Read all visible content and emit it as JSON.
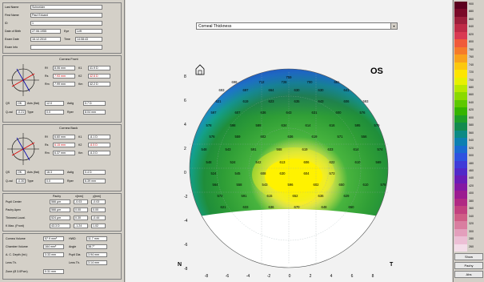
{
  "patient": {
    "rows": [
      {
        "label": "Last Name",
        "value": "Schneider"
      },
      {
        "label": "First Name",
        "value": "Paul Eduard"
      },
      {
        "label": "ID",
        "value": "1"
      },
      {
        "label": "Date of Birth",
        "value": "27.06.1955"
      },
      {
        "label": "Exam Date",
        "value": "16.12.2010"
      },
      {
        "label": "Exam Info",
        "value": ""
      }
    ],
    "eye_label": "Eye",
    "eye_value": "Left",
    "time_label": "Time",
    "time_value": "14:08:43"
  },
  "cornea_front": {
    "title": "Cornea Front",
    "fields": [
      {
        "label": "Rf",
        "value": "8.06 mm",
        "label2": "K1",
        "value2": "41.9 D",
        "red": false
      },
      {
        "label": "Rs",
        "value": "7.93 mm",
        "label2": "K2",
        "value2": "42.6 D",
        "red": true
      },
      {
        "label": "Rm",
        "value": "7.99 mm",
        "label2": "Km",
        "value2": "42.2 D",
        "red": false
      }
    ],
    "astig": [
      {
        "label": "QS",
        "value": "OK",
        "label2": "Axis (flat)",
        "value2": "12.0",
        "label3": "Astig",
        "value3": "0.7 D"
      },
      {
        "label": "Q-val",
        "value": "-0.21",
        "label2": "Type",
        "value2": "0.0",
        "label3": "Rper",
        "value3": "8.04 mm"
      }
    ]
  },
  "cornea_back": {
    "title": "Cornea Back",
    "fields": [
      {
        "label": "Rf",
        "value": "6.60 mm",
        "label2": "K1",
        "value2": "-6.1 D",
        "red": false
      },
      {
        "label": "Rs",
        "value": "6.15 mm",
        "label2": "K2",
        "value2": "-6.5 D",
        "red": true
      },
      {
        "label": "Rm",
        "value": "6.37 mm",
        "label2": "Km",
        "value2": "-6.3 D",
        "red": false
      }
    ],
    "astig": [
      {
        "label": "QS",
        "value": "OK",
        "label2": "Axis (flat)",
        "value2": "16.3",
        "label3": "Astig",
        "value3": "0.4 D"
      },
      {
        "label": "Q-val",
        "value": "-0.30",
        "label2": "Type",
        "value2": "0.0",
        "label3": "Rper",
        "value3": "6.39 mm"
      }
    ]
  },
  "pupil": {
    "header_pachy": "Pachy",
    "header_x": "x[mm]",
    "header_y": "y[mm]",
    "rows": [
      {
        "label": "Pupil Center",
        "value": "566 µm",
        "x": "-0.03",
        "y": "-0.03"
      },
      {
        "label": "Pachy Apex",
        "value": "566 µm",
        "x": "0.00",
        "y": "0.00"
      },
      {
        "label": "Thinnest Locat.",
        "value": "524 µm",
        "x": "0.30",
        "y": "-0.44"
      },
      {
        "label": "K Max. (Front)",
        "value": "43.3 D",
        "x": "-1.24",
        "y": "1.02"
      }
    ]
  },
  "bottom": {
    "rows": [
      {
        "label": "Cornea Volume",
        "value": "57.9 mm³",
        "label2": "HWD",
        "value2": "11.7 mm"
      },
      {
        "label": "Chamber Volume",
        "value": "164 mm³",
        "label2": "Angle",
        "value2": "38.7°"
      },
      {
        "label": "A. C. Depth (Int.)",
        "value": "3.33 mm",
        "label2": "Pupil Dia",
        "value2": "3.94 mm"
      },
      {
        "label": "Lens Th.",
        "value": "",
        "label2": "Lens Th.",
        "value2": "3.14 mm"
      }
    ],
    "bottom_label": "Zone (Ø 3.0Pcm)",
    "bottom_value": "0.31 mm"
  },
  "map": {
    "dropdown": "Corneal Thickness",
    "eye": "OS",
    "nasal": "N",
    "temporal": "T",
    "y_ticks": [
      "8",
      "6",
      "4",
      "2",
      "0",
      "-2",
      "-4",
      "-6",
      "-8"
    ],
    "x_ticks": [
      "-8",
      "-6",
      "-4",
      "-2",
      "0",
      "2",
      "4",
      "6",
      "8"
    ],
    "values": [
      {
        "v": "759"
      },
      {
        "v": "698"
      },
      {
        "v": "712"
      },
      {
        "v": "728"
      },
      {
        "v": "700"
      },
      {
        "v": "661"
      },
      {
        "v": "693"
      },
      {
        "v": "697"
      },
      {
        "v": "664"
      },
      {
        "v": "630"
      },
      {
        "v": "630"
      },
      {
        "v": "641"
      },
      {
        "v": "621"
      },
      {
        "v": "619"
      },
      {
        "v": "623"
      },
      {
        "v": "635"
      },
      {
        "v": "643"
      },
      {
        "v": "606"
      },
      {
        "v": "593"
      },
      {
        "v": "597"
      },
      {
        "v": "607"
      },
      {
        "v": "636"
      },
      {
        "v": "643"
      },
      {
        "v": "631"
      },
      {
        "v": "600"
      },
      {
        "v": "576"
      },
      {
        "v": "578"
      },
      {
        "v": "598"
      },
      {
        "v": "589"
      },
      {
        "v": "634"
      },
      {
        "v": "614"
      },
      {
        "v": "616"
      },
      {
        "v": "595"
      },
      {
        "v": "579"
      },
      {
        "v": "576"
      },
      {
        "v": "559"
      },
      {
        "v": "602"
      },
      {
        "v": "636"
      },
      {
        "v": "619"
      },
      {
        "v": "571"
      },
      {
        "v": "556"
      },
      {
        "v": "548"
      },
      {
        "v": "543"
      },
      {
        "v": "591"
      },
      {
        "v": "568"
      },
      {
        "v": "619"
      },
      {
        "v": "633"
      },
      {
        "v": "614"
      },
      {
        "v": "574"
      },
      {
        "v": "548"
      },
      {
        "v": "524"
      },
      {
        "v": "542"
      },
      {
        "v": "613"
      },
      {
        "v": "606"
      },
      {
        "v": "622"
      },
      {
        "v": "610"
      },
      {
        "v": "569"
      },
      {
        "v": "524"
      },
      {
        "v": "545"
      },
      {
        "v": "608"
      },
      {
        "v": "630"
      },
      {
        "v": "604"
      },
      {
        "v": "573"
      },
      {
        "v": "564"
      },
      {
        "v": "558"
      },
      {
        "v": "543"
      },
      {
        "v": "596"
      },
      {
        "v": "602"
      },
      {
        "v": "650"
      },
      {
        "v": "610"
      },
      {
        "v": "578"
      },
      {
        "v": "572"
      },
      {
        "v": "591"
      },
      {
        "v": "615"
      },
      {
        "v": "652"
      },
      {
        "v": "636"
      },
      {
        "v": "629"
      },
      {
        "v": "621"
      },
      {
        "v": "633"
      },
      {
        "v": "636"
      },
      {
        "v": "670"
      },
      {
        "v": "648"
      },
      {
        "v": "650"
      }
    ]
  },
  "scale": {
    "colors": [
      "#5c001e",
      "#7a0a28",
      "#9c1f3a",
      "#be2b46",
      "#d93a52",
      "#f05a3a",
      "#f57b2a",
      "#f9a21c",
      "#fcc80e",
      "#fde500",
      "#e7f000",
      "#b8e800",
      "#8bd900",
      "#5dc800",
      "#35b400",
      "#1e9e28",
      "#138a4e",
      "#0c8a84",
      "#0d7fb1",
      "#1a6ad2",
      "#2e52e0",
      "#3f3bd8",
      "#5129c8",
      "#6a1cb6",
      "#8418a3",
      "#9b1b90",
      "#b02983",
      "#c2417f",
      "#cf5e86",
      "#d97ea0",
      "#e39fbc",
      "#ecbfd5",
      "#f3dde9"
    ],
    "labels": [
      "900",
      "880",
      "860",
      "840",
      "820",
      "800",
      "780",
      "760",
      "740",
      "720",
      "700",
      "680",
      "660",
      "640",
      "620",
      "600",
      "580",
      "560",
      "540",
      "520",
      "500",
      "480",
      "460",
      "440",
      "420",
      "400",
      "380",
      "360",
      "340",
      "320",
      "300",
      "280",
      "260"
    ],
    "buttons": [
      "Show",
      "Pachy",
      "Abs"
    ]
  }
}
